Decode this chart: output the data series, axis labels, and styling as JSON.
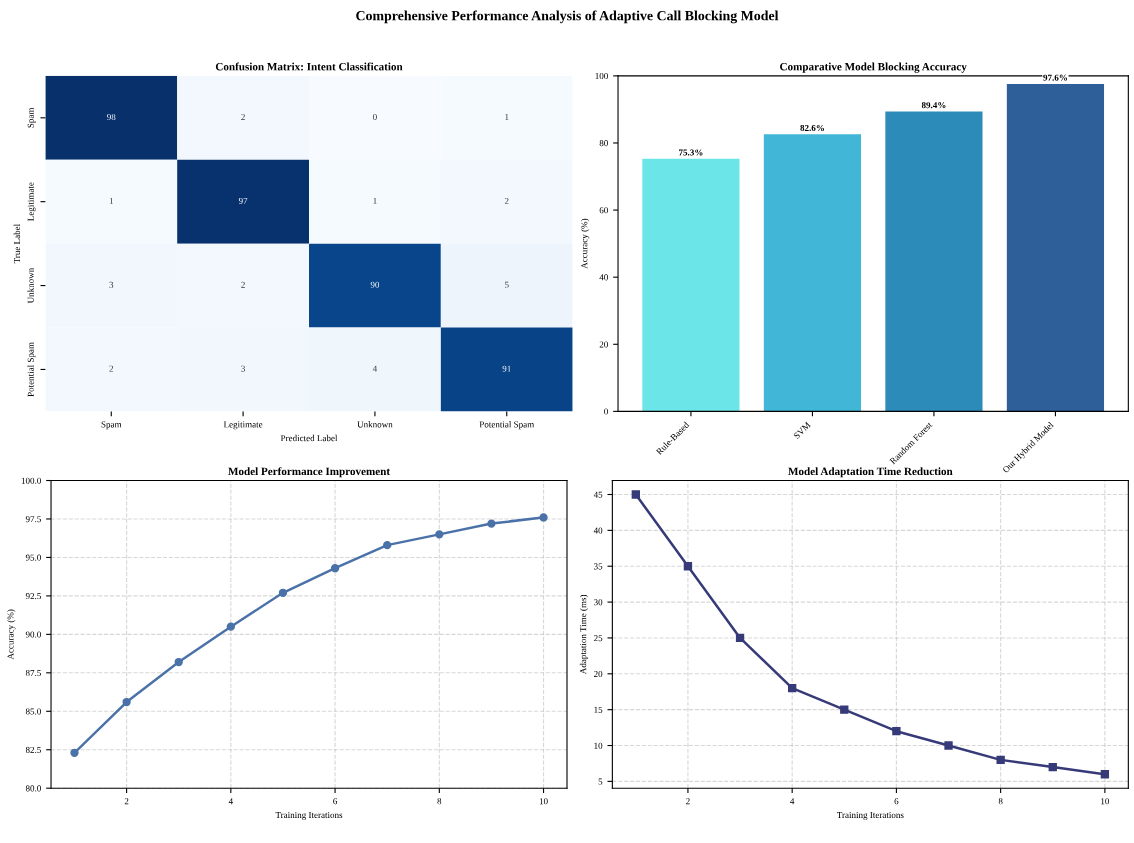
{
  "chart_data": [
    {
      "type": "heatmap",
      "title": "Confusion Matrix: Intent Classification",
      "xlabel": "Predicted Label",
      "ylabel": "True Label",
      "annotations": [
        "Comprehensive Performance Analysis of Adaptive Call Blocking Model"
      ],
      "categories": [
        "Spam",
        "Legitimate",
        "Unknown",
        "Potential Spam"
      ],
      "y_categories": [
        "Spam",
        "Legitimate",
        "Unknown",
        "Potential Spam"
      ],
      "cells": [
        [
          98,
          2,
          0,
          1
        ],
        [
          1,
          97,
          1,
          2
        ],
        [
          3,
          2,
          90,
          5
        ],
        [
          2,
          3,
          4,
          91
        ]
      ],
      "data_labels": true
    },
    {
      "type": "bar",
      "title": "Comparative Model Blocking Accuracy",
      "ylabel": "Accuracy (%)",
      "categories": [
        "Rule-Based",
        "SVM",
        "Random Forest",
        "Our Hybrid Model"
      ],
      "values": [
        75.3,
        82.6,
        89.4,
        97.6
      ],
      "colors": [
        "#6ce5e8",
        "#41b6d6",
        "#2d8bba",
        "#2f5f98"
      ],
      "value_labels": [
        "75.3%",
        "82.6%",
        "89.4%",
        "97.6%"
      ],
      "ylim": [
        0,
        100
      ],
      "yticks": [
        0,
        20,
        40,
        60,
        80,
        100
      ]
    },
    {
      "type": "line",
      "title": "Model Performance Improvement",
      "xlabel": "Training Iterations",
      "ylabel": "Accuracy (%)",
      "x": [
        1,
        2,
        3,
        4,
        5,
        6,
        7,
        8,
        9,
        10
      ],
      "series": [
        {
          "color": "#4a72a8",
          "values": [
            82.3,
            85.6,
            88.2,
            90.5,
            92.7,
            94.3,
            95.8,
            96.5,
            97.2,
            97.6
          ]
        }
      ],
      "xlim": [
        0.55,
        10.45
      ],
      "xticks": [
        2,
        4,
        6,
        8,
        10
      ],
      "ylim": [
        80,
        100
      ],
      "yticks": [
        {
          "value": 80,
          "label": "80.0"
        },
        {
          "value": 82.5,
          "label": "82.5"
        },
        {
          "value": 85,
          "label": "85.0"
        },
        {
          "value": 87.5,
          "label": "87.5"
        },
        {
          "value": 90,
          "label": "90.0"
        },
        {
          "value": 92.5,
          "label": "92.5"
        },
        {
          "value": 95,
          "label": "95.0"
        },
        {
          "value": 97.5,
          "label": "97.5"
        },
        {
          "value": 100,
          "label": "100.0"
        }
      ],
      "grid": true,
      "marker": "circle",
      "line_style": "solid"
    },
    {
      "type": "line",
      "title": "Model Adaptation Time Reduction",
      "xlabel": "Training Iterations",
      "ylabel": "Adaptation Time (ms)",
      "x": [
        1,
        2,
        3,
        4,
        5,
        6,
        7,
        8,
        9,
        10
      ],
      "series": [
        {
          "color": "#363a78",
          "values": [
            45,
            35,
            25,
            18,
            15,
            12,
            10,
            8,
            7,
            6
          ]
        }
      ],
      "xlim": [
        0.55,
        10.45
      ],
      "xticks": [
        2,
        4,
        6,
        8,
        10
      ],
      "ylim": [
        4.05,
        46.95
      ],
      "yticks": [
        5,
        10,
        15,
        20,
        25,
        30,
        35,
        40,
        45
      ],
      "grid": true,
      "marker": "square",
      "line_style": "solid"
    }
  ]
}
